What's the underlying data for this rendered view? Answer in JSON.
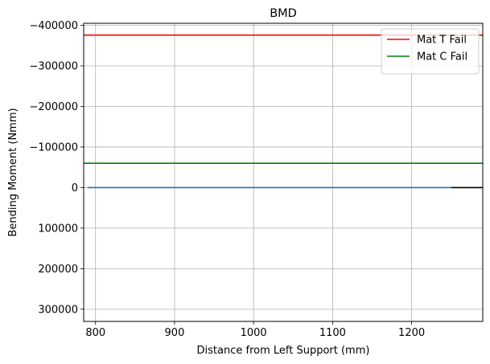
{
  "chart_data": {
    "type": "line",
    "title": "BMD",
    "xlabel": "Distance from Left Support (mm)",
    "ylabel": "Bending Moment (Nmm)",
    "xlim": [
      785,
      1290
    ],
    "ylim": [
      330000,
      -405000
    ],
    "y_inverted": true,
    "grid": true,
    "legend_position": "top-right",
    "x_ticks": [
      800,
      900,
      1000,
      1100,
      1200
    ],
    "x_tick_labels": [
      "800",
      "900",
      "1000",
      "1100",
      "1200"
    ],
    "y_ticks": [
      -400000,
      -300000,
      -200000,
      -100000,
      0,
      100000,
      200000,
      300000
    ],
    "y_tick_labels": [
      "−400000",
      "−300000",
      "−200000",
      "−100000",
      "0",
      "100000",
      "200000",
      "300000"
    ],
    "series": [
      {
        "name": "Mat T Fail",
        "color": "#ff0000",
        "x": [
          785,
          1290
        ],
        "y": [
          -376000,
          -376000
        ]
      },
      {
        "name": "Mat C Fail",
        "color": "#008000",
        "x": [
          785,
          1290
        ],
        "y": [
          -60000,
          -60000
        ]
      },
      {
        "color": "#1f77b4",
        "x": [
          790,
          1250
        ],
        "y": [
          0,
          0
        ]
      },
      {
        "color": "#000000",
        "x": [
          1250,
          1290
        ],
        "y": [
          0,
          0
        ]
      }
    ]
  }
}
